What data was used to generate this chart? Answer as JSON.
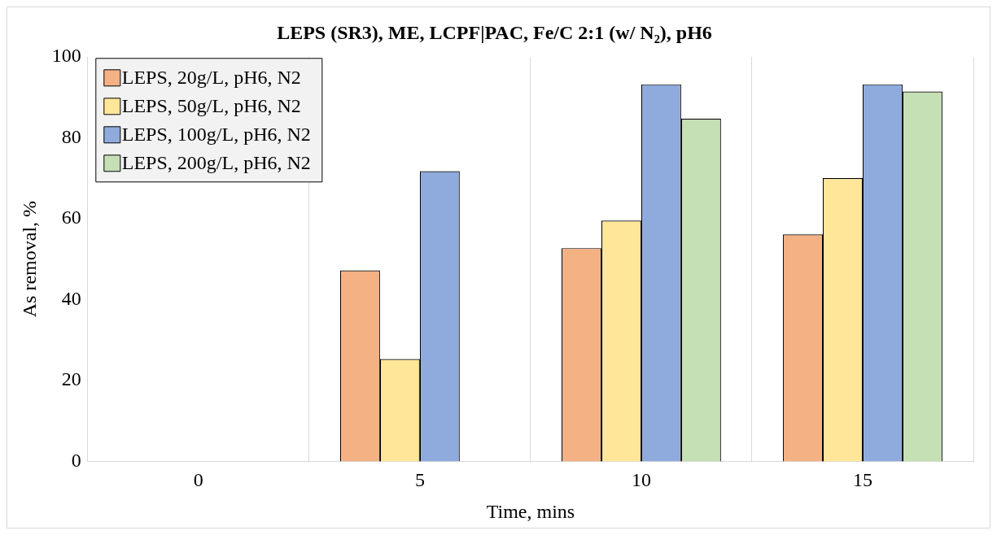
{
  "chart_data": {
    "type": "bar",
    "title": "LEPS (SR3), ME, LCPF|PAC, Fe/C 2:1 (w/ N₂), pH6",
    "xlabel": "Time, mins",
    "ylabel": "As removal, %",
    "categories": [
      "0",
      "5",
      "10",
      "15"
    ],
    "series": [
      {
        "name": "LEPS, 20g/L, pH6, N2",
        "color": "#f4b183",
        "values": [
          0,
          47.2,
          52.7,
          56.1
        ]
      },
      {
        "name": "LEPS, 50g/L, pH6, N2",
        "color": "#ffe699",
        "values": [
          0,
          25.3,
          59.5,
          70.0
        ]
      },
      {
        "name": "LEPS, 100g/L, pH6, N2",
        "color": "#8faadc",
        "values": [
          0,
          71.7,
          93.2,
          93.2
        ]
      },
      {
        "name": "LEPS, 200g/L, pH6, N2",
        "color": "#c5e0b4",
        "values": [
          0,
          0,
          84.7,
          91.4
        ]
      }
    ],
    "ylim": [
      0,
      100
    ],
    "yticks": [
      0,
      20,
      40,
      60,
      80,
      100
    ],
    "grid": "x",
    "legend": "top left"
  }
}
